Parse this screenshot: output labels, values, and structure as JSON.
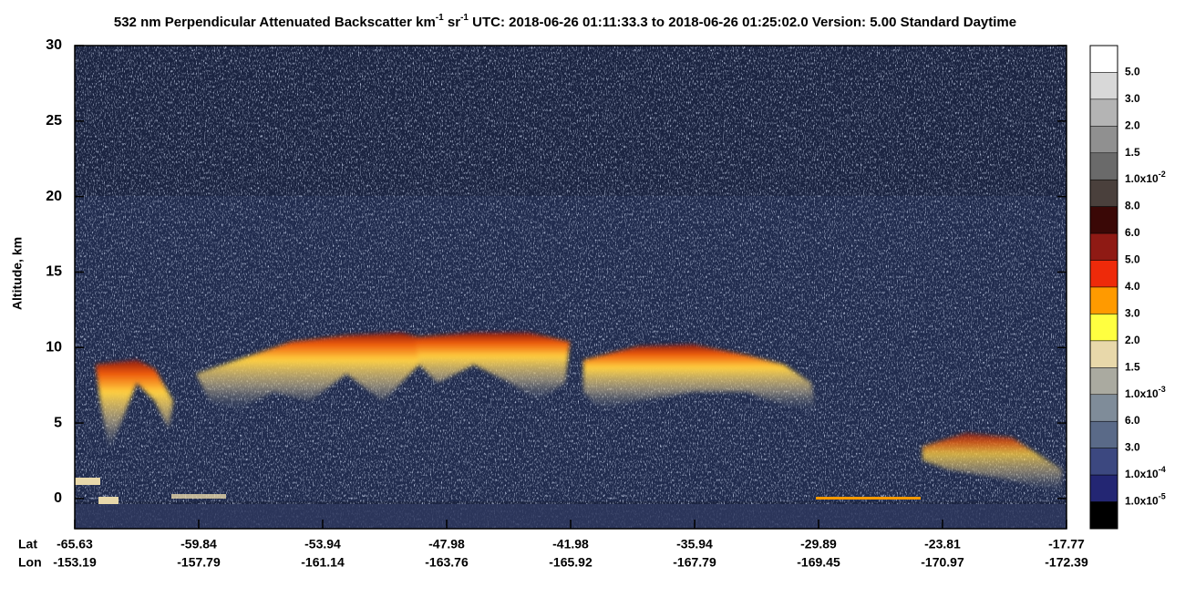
{
  "chart_data": {
    "type": "curtain",
    "title_parts": [
      "532 nm Perpendicular Attenuated Backscatter km",
      "-1",
      " sr",
      "-1",
      "  UTC: 2018-06-26 01:11:33.3 to 2018-06-26 01:25:02.0  Version: 5.00 Standard Daytime"
    ],
    "y_label": "Altitude, km",
    "ylim": [
      -2,
      30
    ],
    "yticks": [
      0,
      5,
      10,
      15,
      20,
      25,
      30
    ],
    "row_labels": [
      "Lat",
      "Lon"
    ],
    "lat": [
      -65.63,
      -59.84,
      -53.94,
      -47.98,
      -41.98,
      -35.94,
      -29.89,
      -23.81,
      -17.77
    ],
    "lon": [
      -153.19,
      -157.79,
      -161.14,
      -163.76,
      -165.92,
      -167.79,
      -169.45,
      -170.97,
      -172.39
    ],
    "colorbar": {
      "labels": [
        {
          "base": "5.0"
        },
        {
          "base": "3.0"
        },
        {
          "base": "2.0"
        },
        {
          "base": "1.5"
        },
        {
          "base": "1.0x10",
          "exp": "-2"
        },
        {
          "base": "8.0"
        },
        {
          "base": "6.0"
        },
        {
          "base": "5.0"
        },
        {
          "base": "4.0"
        },
        {
          "base": "3.0"
        },
        {
          "base": "2.0"
        },
        {
          "base": "1.5"
        },
        {
          "base": "1.0x10",
          "exp": "-3"
        },
        {
          "base": "6.0"
        },
        {
          "base": "3.0"
        },
        {
          "base": "1.0x10",
          "exp": "-4"
        },
        {
          "base": "1.0x10",
          "exp": "-5"
        }
      ],
      "colors": [
        "#ffffff",
        "#d8d8d8",
        "#b4b4b4",
        "#909090",
        "#6a6a6a",
        "#4a403c",
        "#3a0806",
        "#8f1a14",
        "#ee2a0a",
        "#ff9a00",
        "#ffff40",
        "#e8d8aa",
        "#aaaaa0",
        "#7f8c99",
        "#5a6a88",
        "#3c4880",
        "#232673",
        "#000000"
      ]
    }
  }
}
